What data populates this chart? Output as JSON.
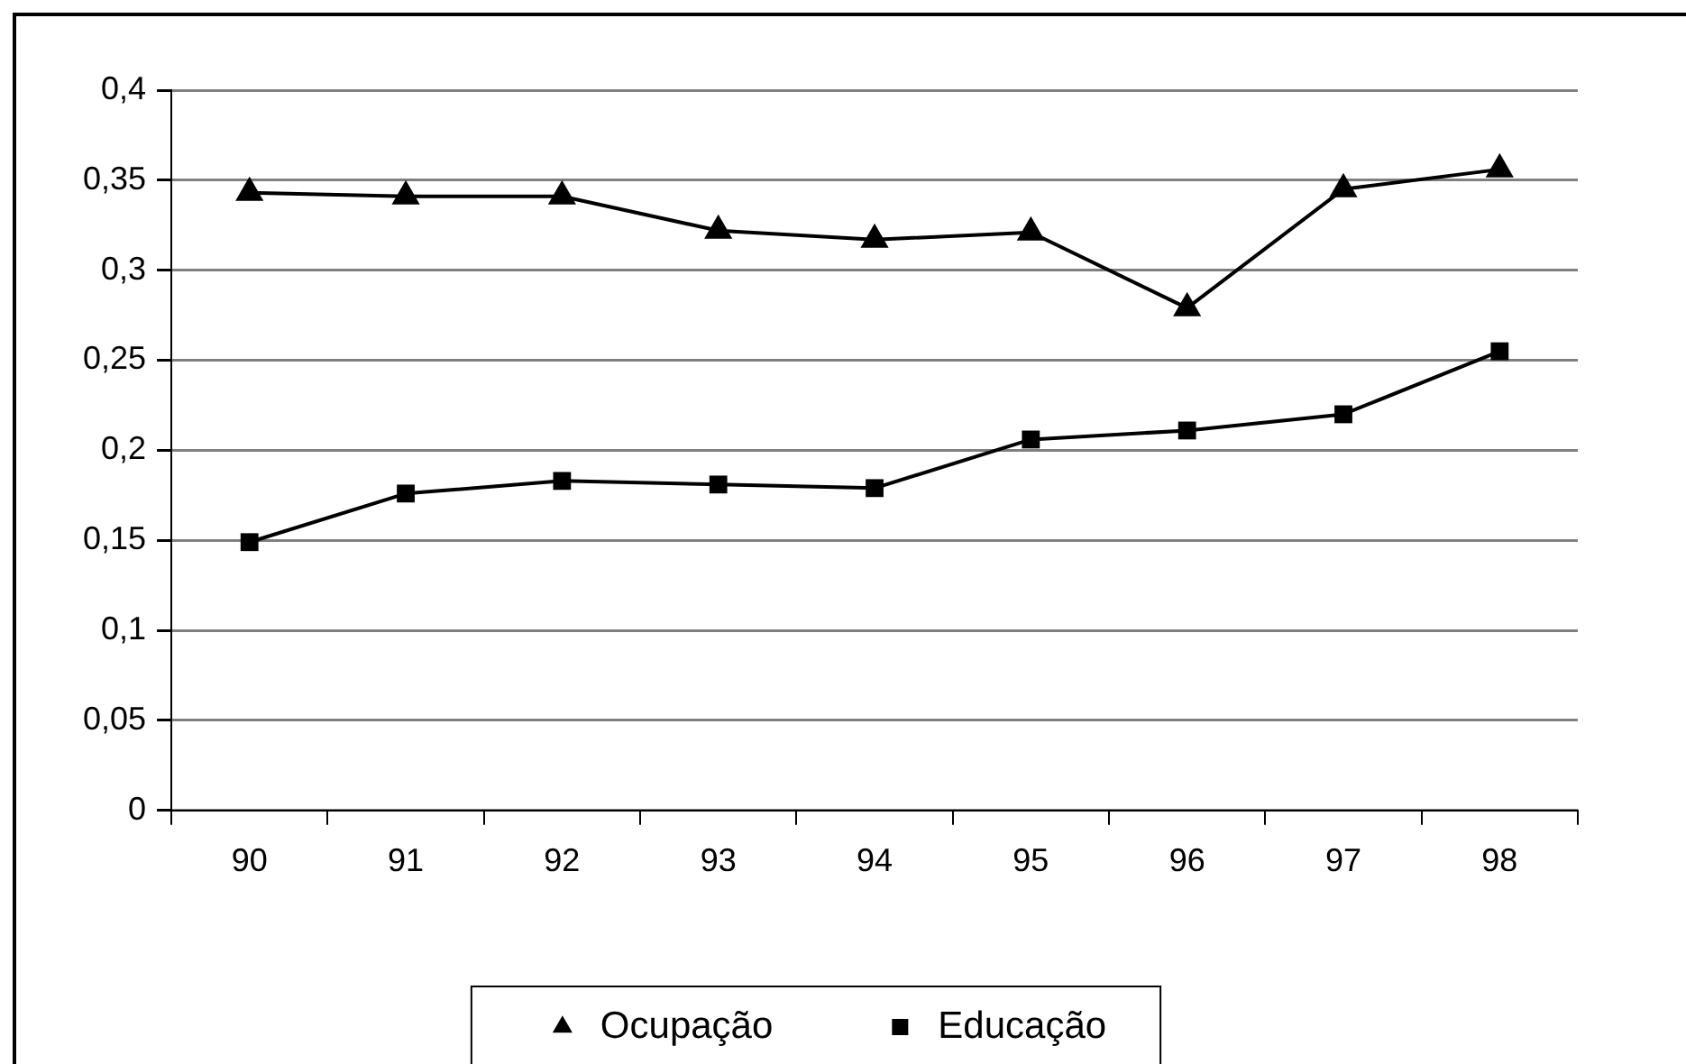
{
  "chart_data": {
    "type": "line",
    "categories": [
      "90",
      "91",
      "92",
      "93",
      "94",
      "95",
      "96",
      "97",
      "98"
    ],
    "series": [
      {
        "name": "Ocupação",
        "color": "#000000",
        "marker": "triangle",
        "values": [
          0.343,
          0.341,
          0.341,
          0.322,
          0.317,
          0.321,
          0.279,
          0.345,
          0.356
        ]
      },
      {
        "name": "Educação",
        "color": "#000000",
        "marker": "square",
        "values": [
          0.149,
          0.176,
          0.183,
          0.181,
          0.179,
          0.206,
          0.211,
          0.22,
          0.255
        ]
      }
    ],
    "ylim": [
      0,
      0.4
    ],
    "yticks": [
      {
        "value": 0,
        "label": "0"
      },
      {
        "value": 0.05,
        "label": "0,05"
      },
      {
        "value": 0.1,
        "label": "0,1"
      },
      {
        "value": 0.15,
        "label": "0,15"
      },
      {
        "value": 0.2,
        "label": "0,2"
      },
      {
        "value": 0.25,
        "label": "0,25"
      },
      {
        "value": 0.3,
        "label": "0,3"
      },
      {
        "value": 0.35,
        "label": "0,35"
      },
      {
        "value": 0.4,
        "label": "0,4"
      }
    ],
    "grid": "y",
    "legend": "bottom",
    "line_style": "solid"
  }
}
